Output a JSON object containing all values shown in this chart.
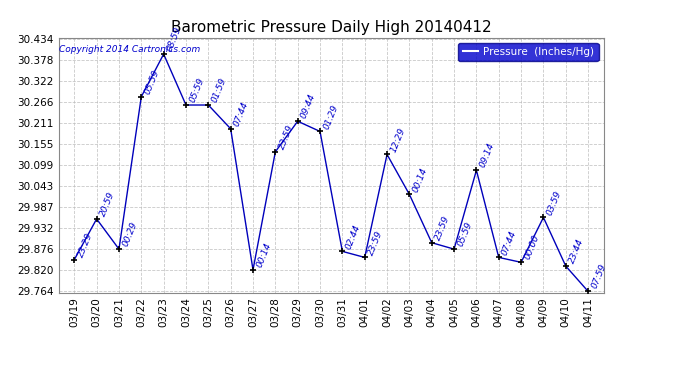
{
  "title": "Barometric Pressure Daily High 20140412",
  "copyright": "Copyright 2014 Cartronics.com",
  "legend_label": "Pressure  (Inches/Hg)",
  "dates": [
    "03/19",
    "03/20",
    "03/21",
    "03/22",
    "03/23",
    "03/24",
    "03/25",
    "03/26",
    "03/27",
    "03/28",
    "03/29",
    "03/30",
    "03/31",
    "04/01",
    "04/02",
    "04/03",
    "04/04",
    "04/05",
    "04/06",
    "04/07",
    "04/08",
    "04/09",
    "04/10",
    "04/11"
  ],
  "values": [
    29.848,
    29.956,
    29.876,
    30.28,
    30.393,
    30.258,
    30.258,
    30.195,
    29.821,
    30.134,
    30.215,
    30.188,
    29.87,
    29.854,
    30.127,
    30.021,
    29.893,
    29.876,
    30.085,
    29.854,
    29.841,
    29.96,
    29.831,
    29.764
  ],
  "times": [
    "23:29",
    "20:59",
    "00:29",
    "05:59",
    "08:59",
    "05:59",
    "01:59",
    "07:44",
    "00:14",
    "23:59",
    "09:44",
    "01:29",
    "02:44",
    "23:59",
    "12:29",
    "00:14",
    "23:59",
    "05:59",
    "09:14",
    "07:44",
    "00:00",
    "03:59",
    "23:44",
    "07:59"
  ],
  "ylim_min": 29.764,
  "ylim_max": 30.434,
  "yticks": [
    29.764,
    29.82,
    29.876,
    29.932,
    29.987,
    30.043,
    30.099,
    30.155,
    30.211,
    30.266,
    30.322,
    30.378,
    30.434
  ],
  "line_color": "#0000bb",
  "marker_color": "#000000",
  "bg_color": "#ffffff",
  "grid_color": "#bbbbbb",
  "title_color": "#000000",
  "label_color": "#0000cc",
  "legend_bg": "#0000cc",
  "legend_text_color": "#ffffff",
  "figwidth": 6.9,
  "figheight": 3.75,
  "dpi": 100
}
